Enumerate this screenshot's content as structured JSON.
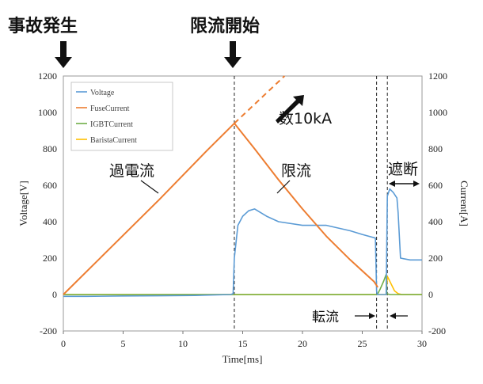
{
  "chart_data": {
    "type": "line",
    "title": "",
    "xlabel": "Time[ms]",
    "ylabel_left": "Voltage[V]",
    "ylabel_right": "Current[A]",
    "xlim": [
      0,
      30
    ],
    "ylim_left": [
      -200,
      1200
    ],
    "ylim_right": [
      -200,
      1200
    ],
    "x_ticks": [
      0,
      5,
      10,
      15,
      20,
      25,
      30
    ],
    "y_ticks": [
      -200,
      0,
      200,
      400,
      600,
      800,
      1000,
      1200
    ],
    "grid": false,
    "legend_position": "top-left",
    "legend": [
      "Voltage",
      "FuseCurrent",
      "IGBTCurrent",
      "BaristaCurrent"
    ],
    "series": [
      {
        "name": "Voltage",
        "color": "#5b9bd5",
        "x": [
          0,
          2,
          5,
          8,
          11,
          14,
          14.2,
          14.3,
          14.6,
          15,
          15.5,
          16,
          17,
          18,
          20,
          22,
          24,
          25,
          26.1,
          26.2,
          26.25,
          26.3,
          26.6,
          26.9,
          27.0,
          27.1,
          27.3,
          27.6,
          27.9,
          28.0,
          28.2,
          29,
          30
        ],
        "y": [
          -10,
          -10,
          -8,
          -7,
          -5,
          0,
          5,
          200,
          380,
          430,
          460,
          470,
          430,
          400,
          380,
          380,
          350,
          330,
          310,
          20,
          0,
          0,
          0,
          0,
          0,
          540,
          580,
          560,
          530,
          450,
          200,
          190,
          190
        ]
      },
      {
        "name": "FuseCurrent",
        "color": "#ed7d31",
        "x": [
          0,
          4,
          8,
          12,
          14.3,
          16,
          18,
          20,
          22,
          24,
          26,
          26.3
        ],
        "y": [
          0,
          260,
          520,
          790,
          940,
          800,
          630,
          470,
          320,
          190,
          70,
          40
        ]
      },
      {
        "name": "IGBTCurrent",
        "color": "#70ad47",
        "x": [
          0,
          26.2,
          26.3,
          26.5,
          26.8,
          27.0,
          27.05,
          27.3,
          30
        ],
        "y": [
          0,
          0,
          5,
          30,
          75,
          110,
          5,
          0,
          0
        ]
      },
      {
        "name": "BaristaCurrent",
        "color": "#ffc000",
        "x": [
          0,
          27.0,
          27.1,
          27.4,
          27.7,
          28.0,
          28.3,
          30
        ],
        "y": [
          0,
          0,
          100,
          60,
          20,
          5,
          0,
          0
        ]
      }
    ],
    "extrapolation": {
      "color": "#ed7d31",
      "x": [
        14.3,
        18.5
      ],
      "y": [
        940,
        1200
      ]
    },
    "event_lines": [
      {
        "x": 14.3
      },
      {
        "x": 26.2
      },
      {
        "x": 27.1
      }
    ]
  },
  "annotations": {
    "fault": "事故発生",
    "limit_start": "限流開始",
    "tens_ka": "数10kA",
    "overcurrent": "過電流",
    "limiting": "限流",
    "interrupt": "遮断",
    "commutation": "転流"
  }
}
